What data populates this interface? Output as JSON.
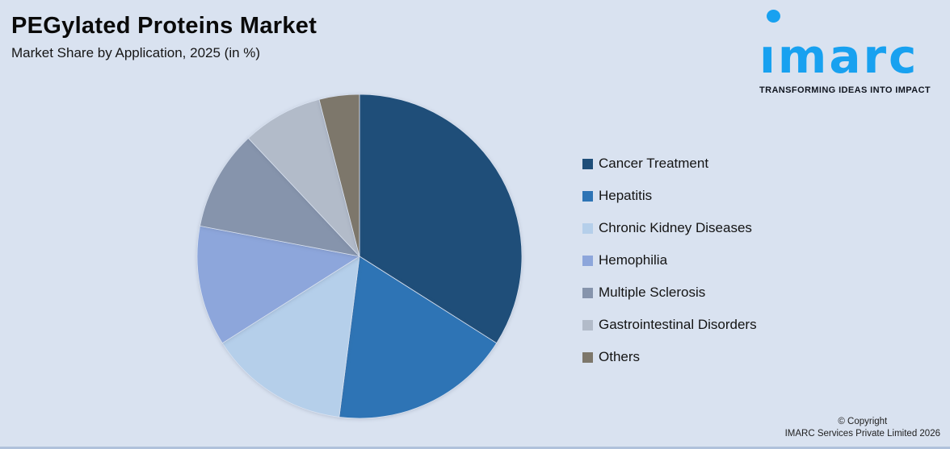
{
  "header": {
    "title": "PEGylated Proteins Market",
    "subtitle": "Market Share by Application, 2025 (in %)"
  },
  "logo": {
    "brand": "imarc",
    "brand_display": "ımarc",
    "tagline": "TRANSFORMING IDEAS INTO IMPACT",
    "brand_color": "#18A1F0"
  },
  "chart_data": {
    "type": "pie",
    "title": "PEGylated Proteins Market",
    "subtitle": "Market Share by Application, 2025 (in %)",
    "unit": "%",
    "start_angle_deg": 0,
    "direction": "clockwise",
    "legend_position": "right",
    "data_labels_shown": false,
    "categories": [
      "Cancer Treatment",
      "Hepatitis",
      "Chronic Kidney Diseases",
      "Hemophilia",
      "Multiple Sclerosis",
      "Gastrointestinal Disorders",
      "Others"
    ],
    "values": [
      34,
      18,
      14,
      12,
      10,
      8,
      4
    ],
    "colors": [
      "#1F4E79",
      "#2E74B5",
      "#B5CFEA",
      "#8DA6DB",
      "#8694AC",
      "#B2BBC9",
      "#7D776B"
    ]
  },
  "footer": {
    "copyright_line1": "© Copyright",
    "copyright_line2": "IMARC Services Private Limited 2026"
  },
  "canvas": {
    "background": "#D9E2F0",
    "bottom_bar_color": "#AFC1DB"
  }
}
